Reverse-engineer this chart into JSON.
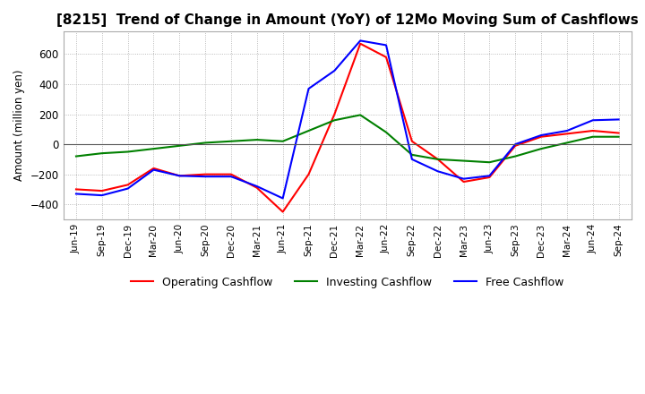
{
  "title": "[8215]  Trend of Change in Amount (YoY) of 12Mo Moving Sum of Cashflows",
  "ylabel": "Amount (million yen)",
  "ylim": [
    -500,
    750
  ],
  "yticks": [
    -400,
    -200,
    0,
    200,
    400,
    600
  ],
  "x_labels": [
    "Jun-19",
    "Sep-19",
    "Dec-19",
    "Mar-20",
    "Jun-20",
    "Sep-20",
    "Dec-20",
    "Mar-21",
    "Jun-21",
    "Sep-21",
    "Dec-21",
    "Mar-22",
    "Jun-22",
    "Sep-22",
    "Dec-22",
    "Mar-23",
    "Jun-23",
    "Sep-23",
    "Dec-23",
    "Mar-24",
    "Jun-24",
    "Sep-24"
  ],
  "operating": [
    -300,
    -310,
    -270,
    -160,
    -210,
    -200,
    -200,
    -290,
    -450,
    -200,
    200,
    670,
    580,
    20,
    -100,
    -250,
    -220,
    -10,
    50,
    70,
    90,
    75
  ],
  "investing": [
    -80,
    -60,
    -50,
    -30,
    -10,
    10,
    20,
    30,
    20,
    90,
    160,
    195,
    80,
    -70,
    -100,
    -110,
    -120,
    -80,
    -30,
    10,
    50,
    50
  ],
  "free": [
    -330,
    -340,
    -295,
    -170,
    -210,
    -215,
    -215,
    -280,
    -360,
    370,
    490,
    690,
    660,
    -100,
    -180,
    -230,
    -210,
    0,
    60,
    90,
    160,
    165
  ],
  "operating_color": "#ff0000",
  "investing_color": "#008000",
  "free_color": "#0000ff",
  "background_color": "#ffffff",
  "grid_color": "#aaaaaa",
  "title_fontsize": 11
}
